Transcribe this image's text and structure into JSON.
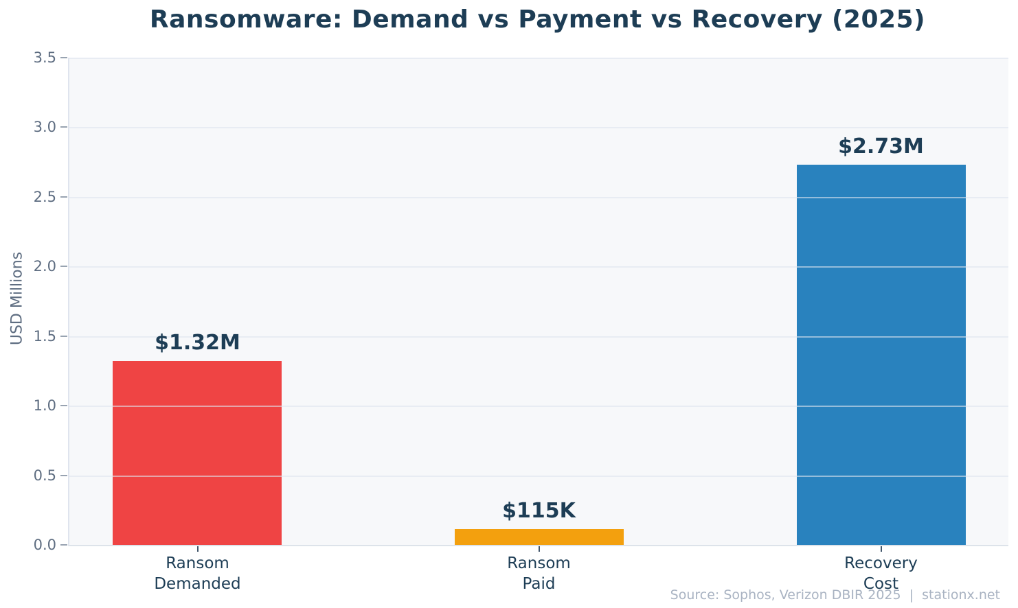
{
  "page": {
    "title": "Ransomware: Demand vs Payment vs Recovery (2025)",
    "source_note": "Source: Sophos, Verizon DBIR 2025  |  stationx.net"
  },
  "chart_data": {
    "type": "bar",
    "title": "Ransomware: Demand vs Payment vs Recovery (2025)",
    "categories": [
      "Ransom\nDemanded",
      "Ransom\nPaid",
      "Recovery\nCost"
    ],
    "values": [
      1.32,
      0.115,
      2.73
    ],
    "value_labels": [
      "$1.32M",
      "$115K",
      "$2.73M"
    ],
    "bar_colors": [
      "#ef4444",
      "#f3a00e",
      "#2982be"
    ],
    "xlabel": "",
    "ylabel": "USD Millions",
    "ylim": [
      0,
      3.5
    ],
    "yticks": [
      "0.0",
      "0.5",
      "1.0",
      "1.5",
      "2.0",
      "2.5",
      "3.0",
      "3.5"
    ],
    "grid": true,
    "legend": false,
    "source": "Source: Sophos, Verizon DBIR 2025  |  stationx.net"
  },
  "colors": {
    "title_text": "#1d3d55",
    "axis_label_text": "#5e6d81",
    "tick_text": "#5e6d81",
    "category_text": "#1d3d55",
    "annotation_text": "#1d3d55",
    "source_text": "#a9b3c2",
    "plot_background": "#f7f8fa",
    "gridline": "rgba(222,229,238,0.6)",
    "tick_mark": "#98a3b1",
    "xtick_mark": "#42566b"
  }
}
